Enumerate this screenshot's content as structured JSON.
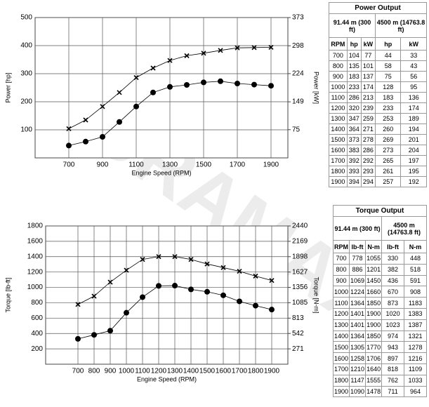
{
  "watermark": "DURAMAX",
  "chart_data": [
    {
      "type": "line",
      "x_label": "Engine Speed (RPM)",
      "y_label": "Power [hp]",
      "y2_label": "Power [kW]",
      "x": [
        700,
        800,
        900,
        1000,
        1100,
        1200,
        1300,
        1400,
        1500,
        1600,
        1700,
        1800,
        1900
      ],
      "xlim": [
        500,
        2000
      ],
      "xticks": [
        700,
        900,
        1100,
        1300,
        1500,
        1700,
        1900
      ],
      "ylim": [
        0,
        500
      ],
      "yticks": [
        100,
        200,
        300,
        400,
        500
      ],
      "y2lim": [
        0,
        373
      ],
      "y2ticks": [
        75,
        149,
        224,
        298,
        373
      ],
      "grid": true,
      "series": [
        {
          "color": "#000000",
          "marker": "x",
          "values": [
            104,
            135,
            183,
            233,
            286,
            320,
            347,
            364,
            373,
            383,
            392,
            393,
            394
          ]
        },
        {
          "color": "#000000",
          "marker": "circle",
          "values": [
            44,
            58,
            75,
            128,
            183,
            233,
            253,
            260,
            269,
            273,
            265,
            261,
            257
          ]
        }
      ]
    },
    {
      "type": "line",
      "x_label": "Engine Speed (RPM)",
      "y_label": "Torque [lb-ft]",
      "y2_label": "Torque [N-m]",
      "x": [
        700,
        800,
        900,
        1000,
        1100,
        1200,
        1300,
        1400,
        1500,
        1600,
        1700,
        1800,
        1900
      ],
      "xlim": [
        500,
        2000
      ],
      "xticks": [
        700,
        800,
        900,
        1000,
        1100,
        1200,
        1300,
        1400,
        1500,
        1600,
        1700,
        1800,
        1900
      ],
      "ylim": [
        0,
        1800
      ],
      "yticks": [
        200,
        400,
        600,
        800,
        1000,
        1200,
        1400,
        1600,
        1800
      ],
      "y2lim": [
        0,
        2440
      ],
      "y2ticks": [
        271,
        542,
        813,
        1085,
        1356,
        1627,
        1898,
        2169,
        2440
      ],
      "grid": true,
      "series": [
        {
          "color": "#000000",
          "marker": "x",
          "values": [
            778,
            886,
            1069,
            1224,
            1364,
            1401,
            1401,
            1364,
            1305,
            1258,
            1210,
            1147,
            1090
          ]
        },
        {
          "color": "#000000",
          "marker": "circle",
          "values": [
            330,
            382,
            436,
            670,
            873,
            1020,
            1023,
            974,
            943,
            897,
            818,
            762,
            711
          ]
        }
      ]
    }
  ],
  "tables": [
    {
      "title": "Power Output",
      "groups": [
        "91.44 m (300 ft)",
        "4500 m (14763.8 ft)"
      ],
      "columns": [
        "RPM",
        "hp",
        "kW",
        "hp",
        "kW"
      ],
      "rows": [
        [
          700,
          104,
          77,
          44,
          33
        ],
        [
          800,
          135,
          101,
          58,
          43
        ],
        [
          900,
          183,
          137,
          75,
          56
        ],
        [
          1000,
          233,
          174,
          128,
          95
        ],
        [
          1100,
          286,
          213,
          183,
          136
        ],
        [
          1200,
          320,
          239,
          233,
          174
        ],
        [
          1300,
          347,
          259,
          253,
          189
        ],
        [
          1400,
          364,
          271,
          260,
          194
        ],
        [
          1500,
          373,
          278,
          269,
          201
        ],
        [
          1600,
          383,
          286,
          273,
          204
        ],
        [
          1700,
          392,
          292,
          265,
          197
        ],
        [
          1800,
          393,
          293,
          261,
          195
        ],
        [
          1900,
          394,
          294,
          257,
          192
        ]
      ]
    },
    {
      "title": "Torque Output",
      "groups": [
        "91.44 m (300 ft)",
        "4500 m (14763.8 ft)"
      ],
      "columns": [
        "RPM",
        "lb-ft",
        "N-m",
        "lb-ft",
        "N-m"
      ],
      "rows": [
        [
          700,
          778,
          1055,
          330,
          448
        ],
        [
          800,
          886,
          1201,
          382,
          518
        ],
        [
          900,
          1069,
          1450,
          436,
          591
        ],
        [
          1000,
          1224,
          1660,
          670,
          908
        ],
        [
          1100,
          1364,
          1850,
          873,
          1183
        ],
        [
          1200,
          1401,
          1900,
          1020,
          1383
        ],
        [
          1300,
          1401,
          1900,
          1023,
          1387
        ],
        [
          1400,
          1364,
          1850,
          974,
          1321
        ],
        [
          1500,
          1305,
          1770,
          943,
          1278
        ],
        [
          1600,
          1258,
          1706,
          897,
          1216
        ],
        [
          1700,
          1210,
          1640,
          818,
          1109
        ],
        [
          1800,
          1147,
          1555,
          762,
          1033
        ],
        [
          1900,
          1090,
          1478,
          711,
          964
        ]
      ]
    }
  ]
}
